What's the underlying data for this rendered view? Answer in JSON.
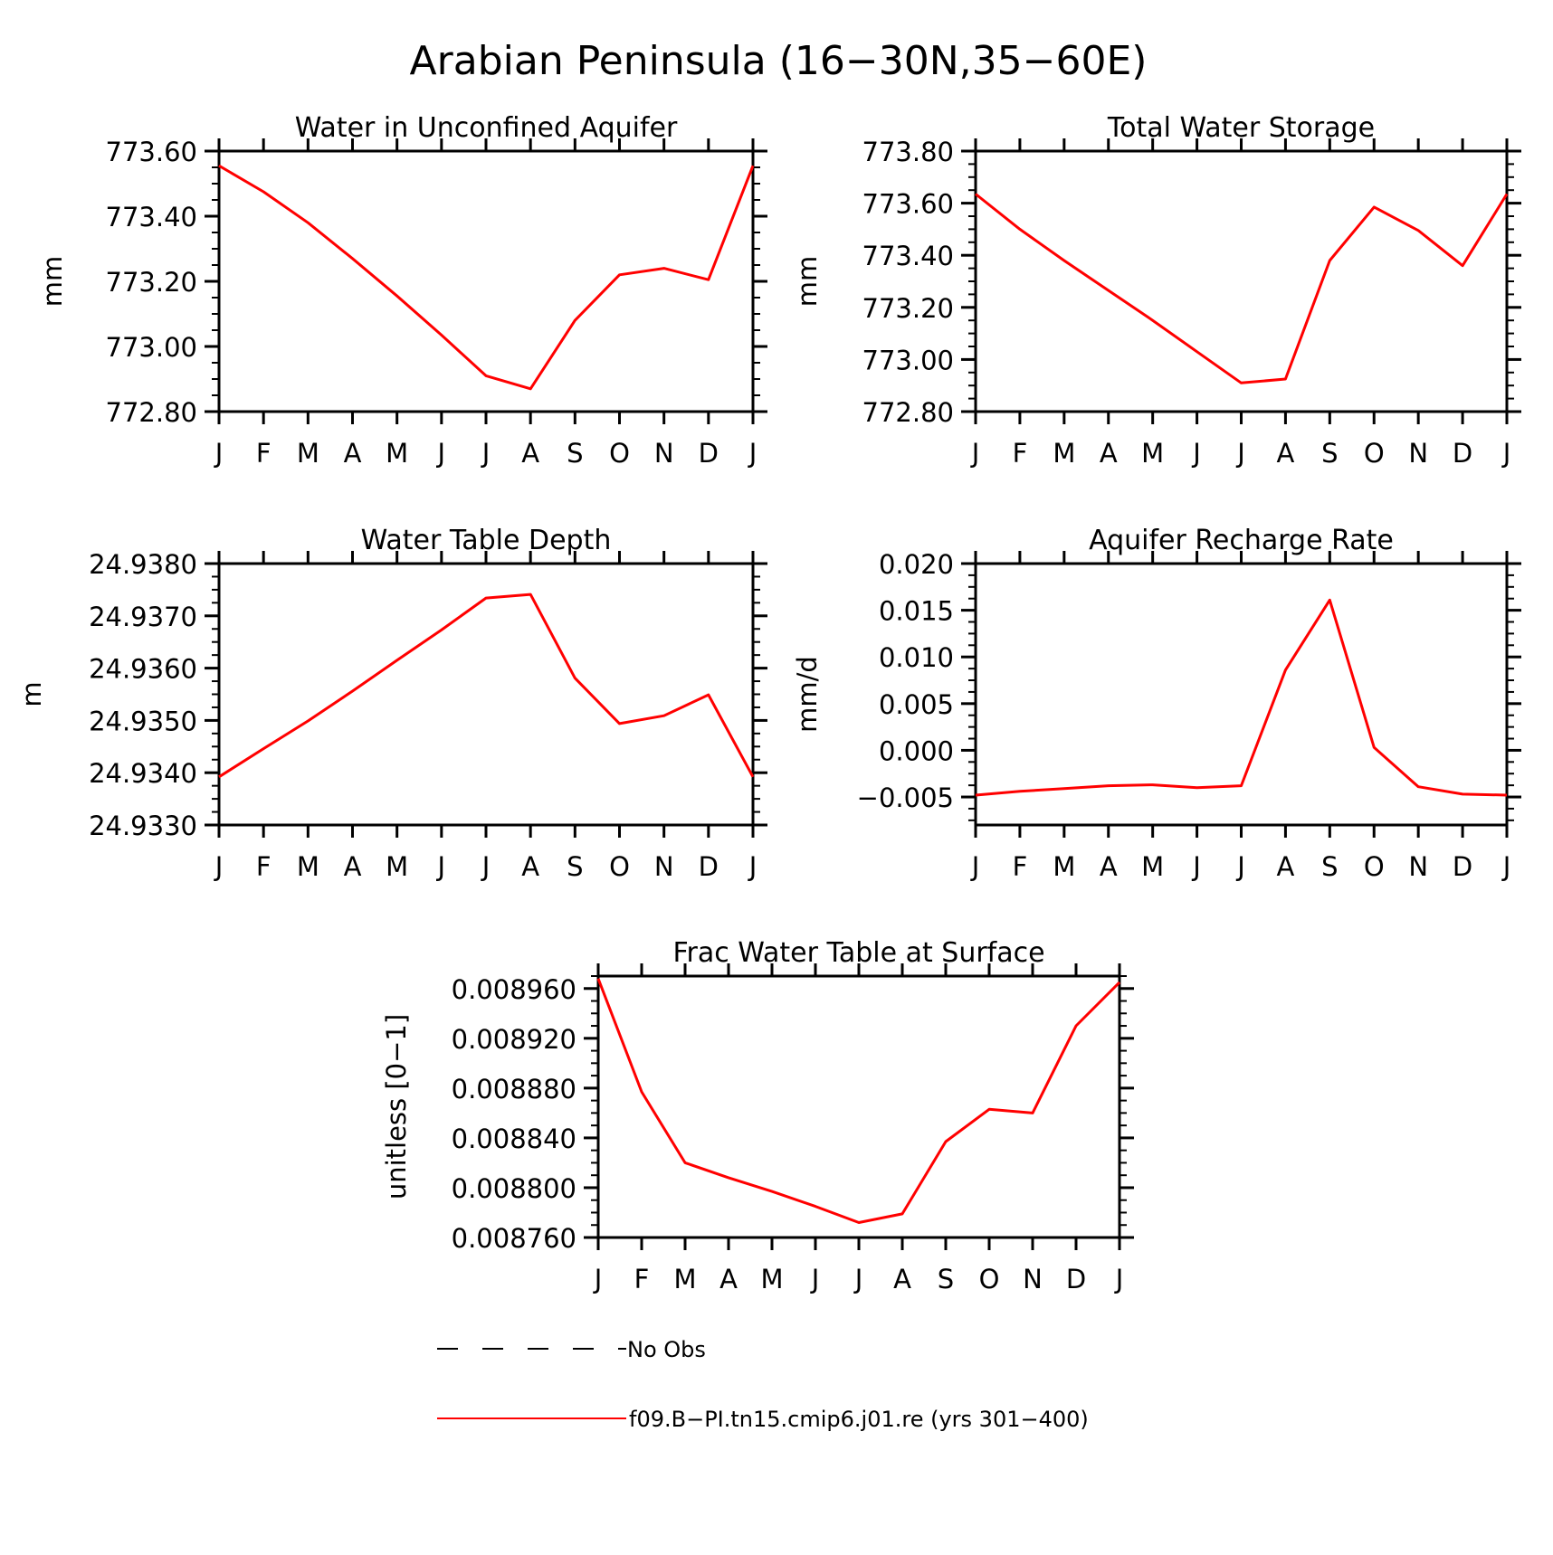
{
  "figure": {
    "title": "Arabian Peninsula (16−30N,35−60E)"
  },
  "colors": {
    "model_line": "#ff0000",
    "obs_line": "#000000"
  },
  "legend": {
    "obs_label": "No Obs",
    "model_label": "f09.B−PI.tn15.cmip6.j01.re (yrs 301−400)"
  },
  "chart_data": [
    {
      "type": "line",
      "title": "Water in Unconfined Aquifer",
      "xlabel": "",
      "ylabel": "mm",
      "categories": [
        "J",
        "F",
        "M",
        "A",
        "M",
        "J",
        "J",
        "A",
        "S",
        "O",
        "N",
        "D",
        "J"
      ],
      "ylim": [
        772.8,
        773.6
      ],
      "yticks": [
        "773.60",
        "773.40",
        "773.20",
        "773.00",
        "772.80"
      ],
      "ytick_values": [
        773.6,
        773.4,
        773.2,
        773.0,
        772.8
      ],
      "grid": false,
      "series": [
        {
          "name": "f09.B−PI.tn15.cmip6.j01.re (yrs 301−400)",
          "values": [
            773.555,
            773.475,
            773.38,
            773.27,
            773.155,
            773.035,
            772.91,
            772.87,
            773.08,
            773.22,
            773.24,
            773.205,
            773.555
          ]
        }
      ]
    },
    {
      "type": "line",
      "title": "Total Water Storage",
      "xlabel": "",
      "ylabel": "mm",
      "categories": [
        "J",
        "F",
        "M",
        "A",
        "M",
        "J",
        "J",
        "A",
        "S",
        "O",
        "N",
        "D",
        "J"
      ],
      "ylim": [
        772.8,
        773.8
      ],
      "yticks": [
        "773.80",
        "773.60",
        "773.40",
        "773.20",
        "773.00",
        "772.80"
      ],
      "ytick_values": [
        773.8,
        773.6,
        773.4,
        773.2,
        773.0,
        772.8
      ],
      "grid": false,
      "series": [
        {
          "name": "f09.B−PI.tn15.cmip6.j01.re (yrs 301−400)",
          "values": [
            773.635,
            773.5,
            773.38,
            773.265,
            773.15,
            773.03,
            772.91,
            772.925,
            773.38,
            773.585,
            773.495,
            773.36,
            773.635
          ]
        }
      ]
    },
    {
      "type": "line",
      "title": "Water Table Depth",
      "xlabel": "",
      "ylabel": "m",
      "categories": [
        "J",
        "F",
        "M",
        "A",
        "M",
        "J",
        "J",
        "A",
        "S",
        "O",
        "N",
        "D",
        "J"
      ],
      "ylim": [
        24.933,
        24.938
      ],
      "yticks": [
        "24.9380",
        "24.9370",
        "24.9360",
        "24.9350",
        "24.9340",
        "24.9330"
      ],
      "ytick_values": [
        24.938,
        24.937,
        24.936,
        24.935,
        24.934,
        24.933
      ],
      "grid": false,
      "series": [
        {
          "name": "f09.B−PI.tn15.cmip6.j01.re (yrs 301−400)",
          "values": [
            24.93392,
            24.93446,
            24.93499,
            24.93556,
            24.93615,
            24.93673,
            24.93734,
            24.93741,
            24.93581,
            24.93494,
            24.93509,
            24.93549,
            24.93392
          ]
        }
      ]
    },
    {
      "type": "line",
      "title": "Aquifer Recharge Rate",
      "xlabel": "",
      "ylabel": "mm/d",
      "categories": [
        "J",
        "F",
        "M",
        "A",
        "M",
        "J",
        "J",
        "A",
        "S",
        "O",
        "N",
        "D",
        "J"
      ],
      "ylim": [
        -0.008,
        0.02
      ],
      "yticks": [
        "0.020",
        "0.015",
        "0.010",
        "0.005",
        "0.000",
        "−0.005"
      ],
      "ytick_values": [
        0.02,
        0.015,
        0.01,
        0.005,
        0.0,
        -0.005
      ],
      "grid": false,
      "series": [
        {
          "name": "f09.B−PI.tn15.cmip6.j01.re (yrs 301−400)",
          "values": [
            -0.0048,
            -0.0044,
            -0.0041,
            -0.0038,
            -0.0037,
            -0.004,
            -0.0038,
            0.0086,
            0.0161,
            0.0003,
            -0.0039,
            -0.0047,
            -0.0048
          ]
        }
      ]
    },
    {
      "type": "line",
      "title": "Frac Water Table at Surface",
      "xlabel": "",
      "ylabel": "unitless [0−1]",
      "categories": [
        "J",
        "F",
        "M",
        "A",
        "M",
        "J",
        "J",
        "A",
        "S",
        "O",
        "N",
        "D",
        "J"
      ],
      "ylim": [
        0.00876,
        0.00897
      ],
      "yticks": [
        "0.008960",
        "0.008920",
        "0.008880",
        "0.008840",
        "0.008800",
        "0.008760"
      ],
      "ytick_values": [
        0.00896,
        0.00892,
        0.00888,
        0.00884,
        0.0088,
        0.00876
      ],
      "grid": false,
      "series": [
        {
          "name": "f09.B−PI.tn15.cmip6.j01.re (yrs 301−400)",
          "values": [
            0.008968,
            0.008877,
            0.00882,
            0.008808,
            0.008797,
            0.008785,
            0.008772,
            0.008779,
            0.008837,
            0.008863,
            0.00886,
            0.00893,
            0.008965
          ]
        }
      ]
    }
  ]
}
